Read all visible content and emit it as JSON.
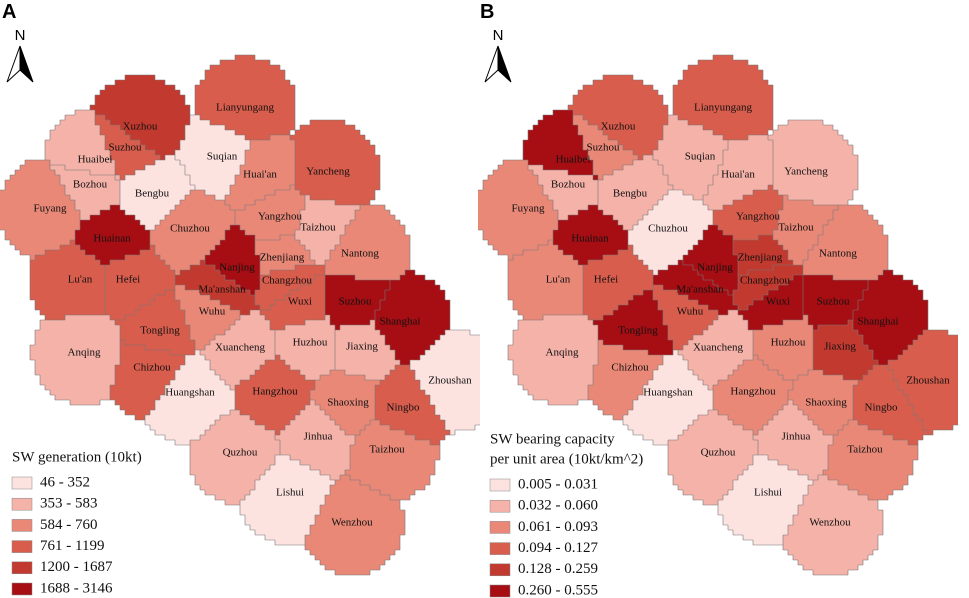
{
  "panels": [
    {
      "label": "A",
      "north": "N",
      "legend": {
        "title_lines": [
          "SW generation (10kt)"
        ],
        "items": [
          {
            "label": "46 - 352",
            "color": "#fde3e0"
          },
          {
            "label": "353 - 583",
            "color": "#f5b2a9"
          },
          {
            "label": "584 - 760",
            "color": "#ea8878"
          },
          {
            "label": "761 - 1199",
            "color": "#d95d4d"
          },
          {
            "label": "1200 - 1687",
            "color": "#c23a2f"
          },
          {
            "label": "1688 - 3146",
            "color": "#a60e13"
          }
        ]
      },
      "regions": [
        {
          "name": "Lianyungang",
          "color": "#d95d4d"
        },
        {
          "name": "Xuzhou",
          "color": "#c23a2f"
        },
        {
          "name": "Suzhou",
          "color": "#d95d4d"
        },
        {
          "name": "Huaibei",
          "color": "#f5b2a9"
        },
        {
          "name": "Suqian",
          "color": "#fde3e0"
        },
        {
          "name": "Huai'an",
          "color": "#ea8878"
        },
        {
          "name": "Yancheng",
          "color": "#d95d4d"
        },
        {
          "name": "Bozhou",
          "color": "#f5b2a9"
        },
        {
          "name": "Bengbu",
          "color": "#fde3e0"
        },
        {
          "name": "Fuyang",
          "color": "#ea8878"
        },
        {
          "name": "Yangzhou",
          "color": "#ea8878"
        },
        {
          "name": "Taizhou",
          "color": "#f5b2a9"
        },
        {
          "name": "Chuzhou",
          "color": "#ea8878"
        },
        {
          "name": "Huainan",
          "color": "#a60e13"
        },
        {
          "name": "Nantong",
          "color": "#ea8878"
        },
        {
          "name": "Zhenjiang",
          "color": "#ea8878"
        },
        {
          "name": "Nanjing",
          "color": "#a60e13"
        },
        {
          "name": "Lu'an",
          "color": "#d95d4d"
        },
        {
          "name": "Hefei",
          "color": "#d95d4d"
        },
        {
          "name": "Ma'anshan",
          "color": "#c23a2f"
        },
        {
          "name": "Changzhou",
          "color": "#d95d4d"
        },
        {
          "name": "Suzhou",
          "color": "#a60e13"
        },
        {
          "name": "Wuxi",
          "color": "#d95d4d"
        },
        {
          "name": "Shanghai",
          "color": "#a60e13"
        },
        {
          "name": "Wuhu",
          "color": "#ea8878"
        },
        {
          "name": "Tongling",
          "color": "#d95d4d"
        },
        {
          "name": "Anqing",
          "color": "#f5b2a9"
        },
        {
          "name": "Xuancheng",
          "color": "#f5b2a9"
        },
        {
          "name": "Huzhou",
          "color": "#f5b2a9"
        },
        {
          "name": "Jiaxing",
          "color": "#f5b2a9"
        },
        {
          "name": "Chizhou",
          "color": "#d95d4d"
        },
        {
          "name": "Zhoushan",
          "color": "#fde3e0"
        },
        {
          "name": "Huangshan",
          "color": "#fde3e0"
        },
        {
          "name": "Hangzhou",
          "color": "#d95d4d"
        },
        {
          "name": "Shaoxing",
          "color": "#ea8878"
        },
        {
          "name": "Ningbo",
          "color": "#d95d4d"
        },
        {
          "name": "Quzhou",
          "color": "#f5b2a9"
        },
        {
          "name": "Jinhua",
          "color": "#f5b2a9"
        },
        {
          "name": "Taizhou",
          "color": "#ea8878"
        },
        {
          "name": "Lishui",
          "color": "#fde3e0"
        },
        {
          "name": "Wenzhou",
          "color": "#ea8878"
        }
      ]
    },
    {
      "label": "B",
      "north": "N",
      "legend": {
        "title_lines": [
          "SW bearing capacity",
          "per unit area (10kt/km^2)"
        ],
        "items": [
          {
            "label": "0.005 - 0.031",
            "color": "#fde3e0"
          },
          {
            "label": "0.032 - 0.060",
            "color": "#f5b2a9"
          },
          {
            "label": "0.061 - 0.093",
            "color": "#ea8878"
          },
          {
            "label": "0.094 - 0.127",
            "color": "#d95d4d"
          },
          {
            "label": "0.128 - 0.259",
            "color": "#c23a2f"
          },
          {
            "label": "0.260 - 0.555",
            "color": "#a60e13"
          }
        ]
      },
      "regions": [
        {
          "name": "Lianyungang",
          "color": "#d95d4d"
        },
        {
          "name": "Xuzhou",
          "color": "#d95d4d"
        },
        {
          "name": "Suzhou",
          "color": "#ea8878"
        },
        {
          "name": "Huaibei",
          "color": "#a60e13"
        },
        {
          "name": "Suqian",
          "color": "#f5b2a9"
        },
        {
          "name": "Huai'an",
          "color": "#f5b2a9"
        },
        {
          "name": "Yancheng",
          "color": "#f5b2a9"
        },
        {
          "name": "Bozhou",
          "color": "#f5b2a9"
        },
        {
          "name": "Bengbu",
          "color": "#f5b2a9"
        },
        {
          "name": "Fuyang",
          "color": "#ea8878"
        },
        {
          "name": "Yangzhou",
          "color": "#d95d4d"
        },
        {
          "name": "Taizhou",
          "color": "#ea8878"
        },
        {
          "name": "Chuzhou",
          "color": "#fde3e0"
        },
        {
          "name": "Huainan",
          "color": "#a60e13"
        },
        {
          "name": "Nantong",
          "color": "#ea8878"
        },
        {
          "name": "Zhenjiang",
          "color": "#c23a2f"
        },
        {
          "name": "Nanjing",
          "color": "#a60e13"
        },
        {
          "name": "Lu'an",
          "color": "#ea8878"
        },
        {
          "name": "Hefei",
          "color": "#d95d4d"
        },
        {
          "name": "Ma'anshan",
          "color": "#a60e13"
        },
        {
          "name": "Changzhou",
          "color": "#c23a2f"
        },
        {
          "name": "Suzhou",
          "color": "#a60e13"
        },
        {
          "name": "Wuxi",
          "color": "#a60e13"
        },
        {
          "name": "Shanghai",
          "color": "#a60e13"
        },
        {
          "name": "Wuhu",
          "color": "#d95d4d"
        },
        {
          "name": "Tongling",
          "color": "#a60e13"
        },
        {
          "name": "Anqing",
          "color": "#f5b2a9"
        },
        {
          "name": "Xuancheng",
          "color": "#f5b2a9"
        },
        {
          "name": "Huzhou",
          "color": "#ea8878"
        },
        {
          "name": "Jiaxing",
          "color": "#c23a2f"
        },
        {
          "name": "Chizhou",
          "color": "#ea8878"
        },
        {
          "name": "Zhoushan",
          "color": "#d95d4d"
        },
        {
          "name": "Huangshan",
          "color": "#fde3e0"
        },
        {
          "name": "Hangzhou",
          "color": "#ea8878"
        },
        {
          "name": "Shaoxing",
          "color": "#ea8878"
        },
        {
          "name": "Ningbo",
          "color": "#d95d4d"
        },
        {
          "name": "Quzhou",
          "color": "#f5b2a9"
        },
        {
          "name": "Jinhua",
          "color": "#f5b2a9"
        },
        {
          "name": "Taizhou",
          "color": "#ea8878"
        },
        {
          "name": "Lishui",
          "color": "#fde3e0"
        },
        {
          "name": "Wenzhou",
          "color": "#f5b2a9"
        }
      ]
    }
  ]
}
